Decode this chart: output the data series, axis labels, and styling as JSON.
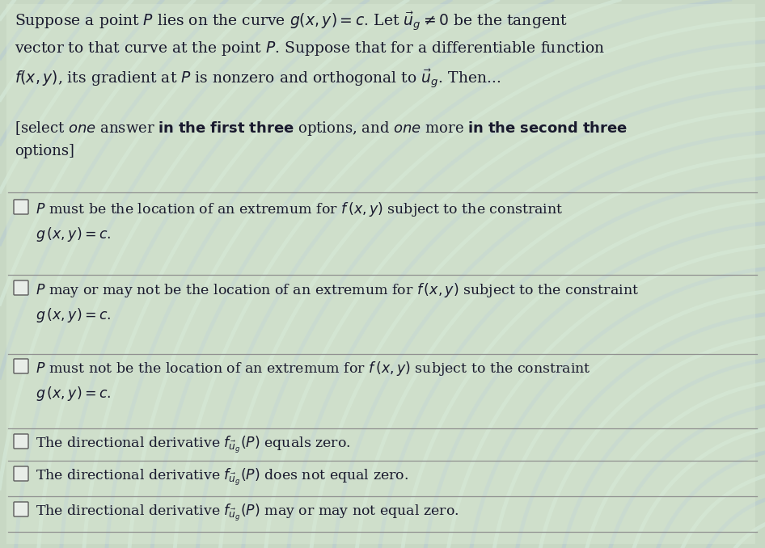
{
  "bg_color_light": "#ccdccc",
  "bg_color_dark": "#b8ccb8",
  "wave_color1": "#c8d8c0",
  "wave_color2": "#dce8dc",
  "panel_bg": "#d4e4d4",
  "text_color": "#1a1a2e",
  "title_text": "Suppose a point $P$ lies on the curve $g(x, y) = c$. Let $\\vec{u}_g \\neq 0$ be the tangent\nvector to that curve at the point $P$. Suppose that for a differentiable function\n$f(x, y)$, its gradient at $P$ is nonzero and orthogonal to $\\vec{u}_g$. Then...",
  "subtitle_line1": "[select $\\mathit{one}$ answer $\\mathbf{in\\ the\\ first\\ three}$ options, and $\\mathit{one}$ more $\\mathbf{in\\ the\\ second\\ three}$",
  "subtitle_line2": "options]",
  "option_texts": [
    "$P$ must be the location of an extremum for $f\\,(x, y)$ subject to the constraint\n$g\\,(x, y) = c.$",
    "$P$ may or may not be the location of an extremum for $f\\,(x, y)$ subject to the constraint\n$g\\,(x, y) = c.$",
    "$P$ must not be the location of an extremum for $f\\,(x, y)$ subject to the constraint\n$g\\,(x, y) = c.$",
    "The directional derivative $f_{\\vec{u}_g}(P)$ equals zero.",
    "The directional derivative $f_{\\vec{u}_g}(P)$ does not equal zero.",
    "The directional derivative $f_{\\vec{u}_g}(P)$ may or may not equal zero."
  ],
  "fig_width": 9.46,
  "fig_height": 6.78,
  "dpi": 100,
  "title_fontsize": 13.5,
  "option_fontsize": 12.5,
  "subtitle_fontsize": 13.0
}
